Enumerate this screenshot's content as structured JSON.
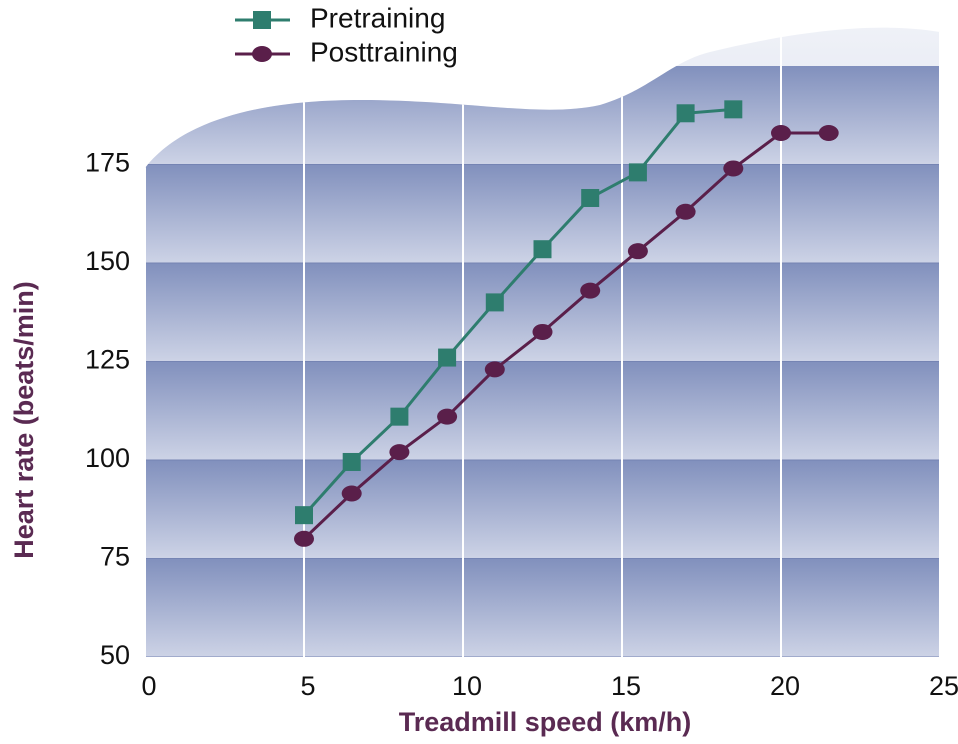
{
  "chart_data": {
    "type": "line",
    "xlabel": "Treadmill speed (km/h)",
    "ylabel": "Heart rate (beats/min)",
    "xlim": [
      0,
      25
    ],
    "xticks": [
      0,
      5,
      10,
      15,
      20,
      25
    ],
    "ylim": [
      50,
      200
    ],
    "yticks": [
      50,
      75,
      100,
      125,
      150,
      175
    ],
    "grid": true,
    "legend": "upper left",
    "series": [
      {
        "name": "Pretraining",
        "color": "#2e7d6e",
        "marker": "square",
        "x": [
          5,
          6.5,
          8,
          9.5,
          11,
          12.5,
          14,
          15.5,
          17,
          18.5
        ],
        "values": [
          86,
          99.5,
          111,
          126,
          140,
          153.5,
          166.5,
          173,
          188,
          189
        ]
      },
      {
        "name": "Posttraining",
        "color": "#5a1f4a",
        "marker": "circle",
        "x": [
          5,
          6.5,
          8,
          9.5,
          11,
          12.5,
          14,
          15.5,
          17,
          18.5,
          20,
          21.5
        ],
        "values": [
          80,
          91.5,
          102,
          111,
          123,
          132.5,
          143,
          153,
          163,
          174,
          183,
          183
        ]
      }
    ]
  }
}
